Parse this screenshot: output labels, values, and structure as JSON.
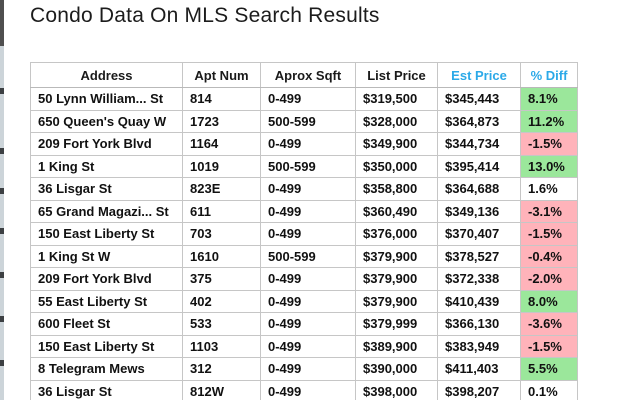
{
  "page": {
    "title": "Condo Data On MLS Search Results"
  },
  "colors": {
    "header_default_text": "#1a1a1a",
    "header_accent_text": "#2BA9E8",
    "positive_bg": "#9BE79B",
    "negative_bg": "#FFB3BA",
    "neutral_bg": "#FFFFFF"
  },
  "table": {
    "columns": [
      {
        "label": "Address",
        "accent": false
      },
      {
        "label": "Apt Num",
        "accent": false
      },
      {
        "label": "Aprox Sqft",
        "accent": false
      },
      {
        "label": "List Price",
        "accent": false
      },
      {
        "label": "Est Price",
        "accent": true
      },
      {
        "label": "% Diff",
        "accent": true
      }
    ],
    "rows": [
      {
        "address": "50 Lynn William... St",
        "apt_num": "814",
        "aprox_sqft": "0-499",
        "list_price": "$319,500",
        "est_price": "$345,443",
        "pct_diff": "8.1%",
        "diff_status": "positive"
      },
      {
        "address": "650 Queen's Quay W",
        "apt_num": "1723",
        "aprox_sqft": "500-599",
        "list_price": "$328,000",
        "est_price": "$364,873",
        "pct_diff": "11.2%",
        "diff_status": "positive"
      },
      {
        "address": "209 Fort York Blvd",
        "apt_num": "1164",
        "aprox_sqft": "0-499",
        "list_price": "$349,900",
        "est_price": "$344,734",
        "pct_diff": "-1.5%",
        "diff_status": "negative"
      },
      {
        "address": "1 King St",
        "apt_num": "1019",
        "aprox_sqft": "500-599",
        "list_price": "$350,000",
        "est_price": "$395,414",
        "pct_diff": "13.0%",
        "diff_status": "positive"
      },
      {
        "address": "36 Lisgar St",
        "apt_num": "823E",
        "aprox_sqft": "0-499",
        "list_price": "$358,800",
        "est_price": "$364,688",
        "pct_diff": "1.6%",
        "diff_status": "neutral"
      },
      {
        "address": "65 Grand Magazi... St",
        "apt_num": "611",
        "aprox_sqft": "0-499",
        "list_price": "$360,490",
        "est_price": "$349,136",
        "pct_diff": "-3.1%",
        "diff_status": "negative"
      },
      {
        "address": "150 East Liberty St",
        "apt_num": "703",
        "aprox_sqft": "0-499",
        "list_price": "$376,000",
        "est_price": "$370,407",
        "pct_diff": "-1.5%",
        "diff_status": "negative"
      },
      {
        "address": "1 King St W",
        "apt_num": "1610",
        "aprox_sqft": "500-599",
        "list_price": "$379,900",
        "est_price": "$378,527",
        "pct_diff": "-0.4%",
        "diff_status": "negative"
      },
      {
        "address": "209 Fort York Blvd",
        "apt_num": "375",
        "aprox_sqft": "0-499",
        "list_price": "$379,900",
        "est_price": "$372,338",
        "pct_diff": "-2.0%",
        "diff_status": "negative"
      },
      {
        "address": "55 East Liberty St",
        "apt_num": "402",
        "aprox_sqft": "0-499",
        "list_price": "$379,900",
        "est_price": "$410,439",
        "pct_diff": "8.0%",
        "diff_status": "positive"
      },
      {
        "address": "600 Fleet St",
        "apt_num": "533",
        "aprox_sqft": "0-499",
        "list_price": "$379,999",
        "est_price": "$366,130",
        "pct_diff": "-3.6%",
        "diff_status": "negative"
      },
      {
        "address": "150 East Liberty St",
        "apt_num": "1103",
        "aprox_sqft": "0-499",
        "list_price": "$389,900",
        "est_price": "$383,949",
        "pct_diff": "-1.5%",
        "diff_status": "negative"
      },
      {
        "address": "8 Telegram Mews",
        "apt_num": "312",
        "aprox_sqft": "0-499",
        "list_price": "$390,000",
        "est_price": "$411,403",
        "pct_diff": "5.5%",
        "diff_status": "positive"
      },
      {
        "address": "36 Lisgar St",
        "apt_num": "812W",
        "aprox_sqft": "0-499",
        "list_price": "$398,000",
        "est_price": "$398,207",
        "pct_diff": "0.1%",
        "diff_status": "neutral"
      }
    ]
  }
}
